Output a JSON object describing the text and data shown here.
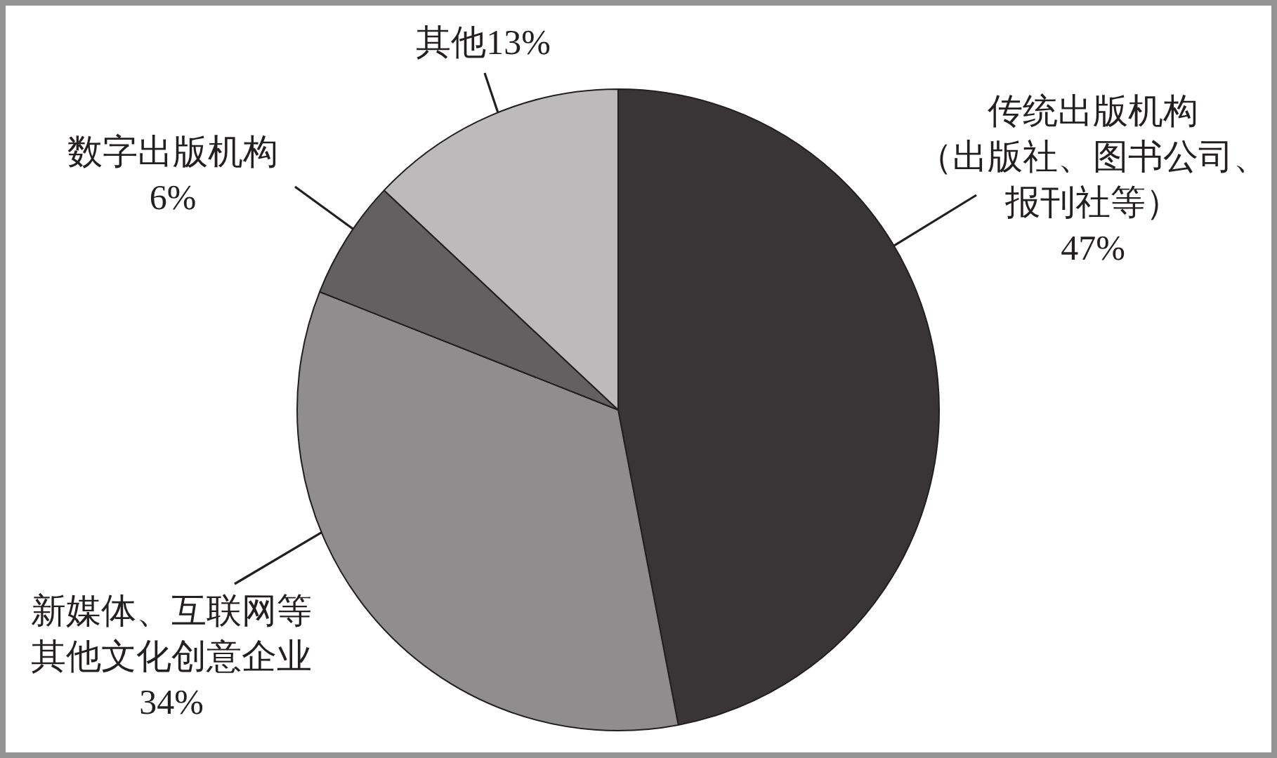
{
  "chart_data": {
    "type": "pie",
    "categories": [
      "传统出版机构（出版社、图书公司、报刊社等）",
      "新媒体、互联网等其他文化创意企业",
      "数字出版机构",
      "其他"
    ],
    "values": [
      47,
      34,
      6,
      13
    ],
    "value_labels": [
      "47%",
      "34%",
      "6%",
      "13%"
    ],
    "colors": [
      "#393536",
      "#8f8d8e",
      "#626061",
      "#bcbabb"
    ]
  }
}
